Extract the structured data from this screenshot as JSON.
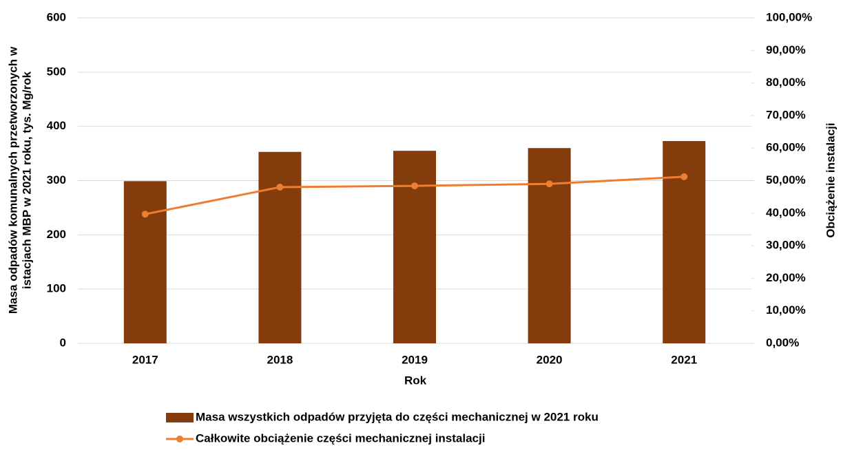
{
  "chart_data": {
    "type": "bar_line",
    "categories": [
      "2017",
      "2018",
      "2019",
      "2020",
      "2021"
    ],
    "xlabel": "Rok",
    "ylabel": [
      "Masa odpadów komunalnych  przetworzonych w",
      "istacjach MBP w 2021 roku, tys. Mg/rok"
    ],
    "y2label": "Obciążenie  instalacji",
    "ylim": [
      0,
      600
    ],
    "yticks": [
      0,
      100,
      200,
      300,
      400,
      500,
      600
    ],
    "y2lim": [
      0,
      100
    ],
    "y2ticks": [
      {
        "value": 0,
        "label": "0,00%"
      },
      {
        "value": 10,
        "label": "10,00%"
      },
      {
        "value": 20,
        "label": "20,00%"
      },
      {
        "value": 30,
        "label": "30,00%"
      },
      {
        "value": 40,
        "label": "40,00%"
      },
      {
        "value": 50,
        "label": "50,00%"
      },
      {
        "value": 60,
        "label": "60,00%"
      },
      {
        "value": 70,
        "label": "70,00%"
      },
      {
        "value": 80,
        "label": "80,00%"
      },
      {
        "value": 90,
        "label": "90,00%"
      },
      {
        "value": 100,
        "label": "100,00%"
      }
    ],
    "grid": true,
    "series": [
      {
        "name": "Masa wszystkich odpadów przyjęta do części mechanicznej w 2021 roku",
        "type": "bar",
        "color": "#843c0c",
        "values": [
          299,
          353,
          355,
          360,
          373
        ]
      },
      {
        "name": "Całkowite obciążenie części mechanicznej instalacji",
        "type": "line",
        "axis": "y2",
        "color": "#ed7d31",
        "values": [
          39.7,
          48.0,
          48.4,
          49.0,
          51.2
        ]
      }
    ]
  }
}
